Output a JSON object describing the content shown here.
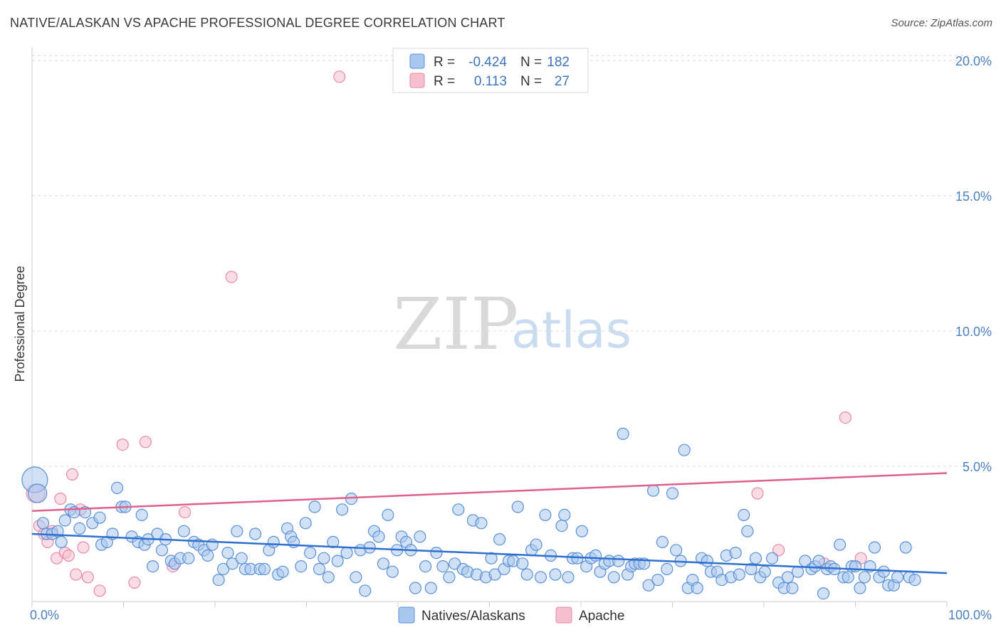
{
  "title": "NATIVE/ALASKAN VS APACHE PROFESSIONAL DEGREE CORRELATION CHART",
  "source": "Source: ZipAtlas.com",
  "watermark": {
    "zip": "ZIP",
    "atlas": "atlas"
  },
  "colors": {
    "blue_fill": "#a9c8ef",
    "blue_stroke": "#5b8fd6",
    "blue_line": "#2f6fd0",
    "pink_fill": "#f6bfd0",
    "pink_stroke": "#e88aa8",
    "pink_line": "#e0608a",
    "grid": "#d8d8d8",
    "axis_text": "#4a7fc1"
  },
  "legend": {
    "rows": [
      {
        "series": "Natives/Alaskans",
        "r_label": "R =",
        "r_value": "-0.424",
        "n_label": "N =",
        "n_value": "182"
      },
      {
        "series": "Apache",
        "r_label": "R =",
        "r_value": "0.113",
        "n_label": "N =",
        "n_value": "27"
      }
    ]
  },
  "chart_data": {
    "type": "scatter",
    "title": "NATIVE/ALASKAN VS APACHE PROFESSIONAL DEGREE CORRELATION CHART",
    "xlabel": "",
    "ylabel": "Professional Degree",
    "xlim": [
      0,
      100
    ],
    "ylim": [
      0,
      20.5
    ],
    "x_tick_labels": [
      {
        "value": 0,
        "label": "0.0%"
      },
      {
        "value": 100,
        "label": "100.0%"
      }
    ],
    "y_tick_labels": [
      {
        "value": 5,
        "label": "5.0%"
      },
      {
        "value": 10,
        "label": "10.0%"
      },
      {
        "value": 15,
        "label": "15.0%"
      },
      {
        "value": 20,
        "label": "20.0%"
      }
    ],
    "series": [
      {
        "name": "Natives/Alaskans",
        "trend": {
          "x": [
            0,
            100
          ],
          "y": [
            2.5,
            1.05
          ]
        },
        "points": [
          [
            0.3,
            4.5
          ],
          [
            0.6,
            4.0
          ],
          [
            1.2,
            2.9
          ],
          [
            1.6,
            2.5
          ],
          [
            2.2,
            2.5
          ],
          [
            2.8,
            2.6
          ],
          [
            3.2,
            2.2
          ],
          [
            3.6,
            3.0
          ],
          [
            4.2,
            3.4
          ],
          [
            4.6,
            3.3
          ],
          [
            5.2,
            2.7
          ],
          [
            5.8,
            3.3
          ],
          [
            6.6,
            2.9
          ],
          [
            7.4,
            3.1
          ],
          [
            7.6,
            2.1
          ],
          [
            8.2,
            2.2
          ],
          [
            8.8,
            2.5
          ],
          [
            9.3,
            4.2
          ],
          [
            9.8,
            3.5
          ],
          [
            10.2,
            3.5
          ],
          [
            10.9,
            2.4
          ],
          [
            11.6,
            2.2
          ],
          [
            12.0,
            3.2
          ],
          [
            12.3,
            2.1
          ],
          [
            12.7,
            2.3
          ],
          [
            13.2,
            1.3
          ],
          [
            13.7,
            2.5
          ],
          [
            14.2,
            1.9
          ],
          [
            14.6,
            2.3
          ],
          [
            15.2,
            1.5
          ],
          [
            15.6,
            1.4
          ],
          [
            16.2,
            1.6
          ],
          [
            16.6,
            2.6
          ],
          [
            17.1,
            1.6
          ],
          [
            17.7,
            2.2
          ],
          [
            18.2,
            2.1
          ],
          [
            18.8,
            1.9
          ],
          [
            19.2,
            1.7
          ],
          [
            19.7,
            2.1
          ],
          [
            20.4,
            0.8
          ],
          [
            20.9,
            1.2
          ],
          [
            21.4,
            1.8
          ],
          [
            21.9,
            1.4
          ],
          [
            22.4,
            2.6
          ],
          [
            22.9,
            1.6
          ],
          [
            23.3,
            1.2
          ],
          [
            23.9,
            1.2
          ],
          [
            24.4,
            2.5
          ],
          [
            24.9,
            1.2
          ],
          [
            25.4,
            1.2
          ],
          [
            25.9,
            1.9
          ],
          [
            26.4,
            2.2
          ],
          [
            26.9,
            1.0
          ],
          [
            27.4,
            1.1
          ],
          [
            27.9,
            2.7
          ],
          [
            28.3,
            2.4
          ],
          [
            28.6,
            2.2
          ],
          [
            29.4,
            1.3
          ],
          [
            29.9,
            2.9
          ],
          [
            30.4,
            1.8
          ],
          [
            30.9,
            3.5
          ],
          [
            31.4,
            1.2
          ],
          [
            31.9,
            1.6
          ],
          [
            32.4,
            0.9
          ],
          [
            32.9,
            2.2
          ],
          [
            33.4,
            1.5
          ],
          [
            33.9,
            3.4
          ],
          [
            34.4,
            1.8
          ],
          [
            34.9,
            3.8
          ],
          [
            35.4,
            0.9
          ],
          [
            35.9,
            1.9
          ],
          [
            36.4,
            0.4
          ],
          [
            36.9,
            2.0
          ],
          [
            37.4,
            2.6
          ],
          [
            37.9,
            2.4
          ],
          [
            38.4,
            1.4
          ],
          [
            38.9,
            3.2
          ],
          [
            39.4,
            1.1
          ],
          [
            39.9,
            1.9
          ],
          [
            40.4,
            2.4
          ],
          [
            40.9,
            2.2
          ],
          [
            41.4,
            1.9
          ],
          [
            41.9,
            0.5
          ],
          [
            42.4,
            2.4
          ],
          [
            43.0,
            1.3
          ],
          [
            43.6,
            0.5
          ],
          [
            44.2,
            1.8
          ],
          [
            44.9,
            1.3
          ],
          [
            45.6,
            0.9
          ],
          [
            46.2,
            1.4
          ],
          [
            46.6,
            3.4
          ],
          [
            47.1,
            1.2
          ],
          [
            47.6,
            1.1
          ],
          [
            48.2,
            3.0
          ],
          [
            48.6,
            1.0
          ],
          [
            49.1,
            2.9
          ],
          [
            49.6,
            0.9
          ],
          [
            50.2,
            1.6
          ],
          [
            50.6,
            1.0
          ],
          [
            51.1,
            2.3
          ],
          [
            51.6,
            1.2
          ],
          [
            52.1,
            1.5
          ],
          [
            52.6,
            1.5
          ],
          [
            53.1,
            3.5
          ],
          [
            53.6,
            1.4
          ],
          [
            54.1,
            1.0
          ],
          [
            54.6,
            1.9
          ],
          [
            55.1,
            2.1
          ],
          [
            55.6,
            0.9
          ],
          [
            56.1,
            3.2
          ],
          [
            56.7,
            1.7
          ],
          [
            57.2,
            1.0
          ],
          [
            57.9,
            2.8
          ],
          [
            58.2,
            3.2
          ],
          [
            58.6,
            0.9
          ],
          [
            59.1,
            1.6
          ],
          [
            59.6,
            1.6
          ],
          [
            60.1,
            2.6
          ],
          [
            60.6,
            1.3
          ],
          [
            61.1,
            1.6
          ],
          [
            61.6,
            1.7
          ],
          [
            62.1,
            1.1
          ],
          [
            62.6,
            1.4
          ],
          [
            63.1,
            1.5
          ],
          [
            63.6,
            0.9
          ],
          [
            64.1,
            1.5
          ],
          [
            64.6,
            6.2
          ],
          [
            65.1,
            1.0
          ],
          [
            65.5,
            1.3
          ],
          [
            65.9,
            1.4
          ],
          [
            66.4,
            1.4
          ],
          [
            66.9,
            1.4
          ],
          [
            67.4,
            0.6
          ],
          [
            67.9,
            4.1
          ],
          [
            68.4,
            0.8
          ],
          [
            68.9,
            2.2
          ],
          [
            69.4,
            1.2
          ],
          [
            70.0,
            4.0
          ],
          [
            70.4,
            1.9
          ],
          [
            70.9,
            1.5
          ],
          [
            71.3,
            5.6
          ],
          [
            71.7,
            0.5
          ],
          [
            72.2,
            0.8
          ],
          [
            72.7,
            0.5
          ],
          [
            73.2,
            1.6
          ],
          [
            73.8,
            1.5
          ],
          [
            74.2,
            1.1
          ],
          [
            74.9,
            1.1
          ],
          [
            75.4,
            0.8
          ],
          [
            75.9,
            1.7
          ],
          [
            76.4,
            0.9
          ],
          [
            76.9,
            1.8
          ],
          [
            77.3,
            1.0
          ],
          [
            77.8,
            3.2
          ],
          [
            78.2,
            2.6
          ],
          [
            78.6,
            1.2
          ],
          [
            79.1,
            1.6
          ],
          [
            79.6,
            0.9
          ],
          [
            80.1,
            1.1
          ],
          [
            80.9,
            1.6
          ],
          [
            81.6,
            0.7
          ],
          [
            82.2,
            0.5
          ],
          [
            82.6,
            0.9
          ],
          [
            83.1,
            0.5
          ],
          [
            83.7,
            1.1
          ],
          [
            84.5,
            1.5
          ],
          [
            85.2,
            1.2
          ],
          [
            85.6,
            1.3
          ],
          [
            86.0,
            1.5
          ],
          [
            86.5,
            0.3
          ],
          [
            86.9,
            1.2
          ],
          [
            87.3,
            1.3
          ],
          [
            87.7,
            1.2
          ],
          [
            88.3,
            2.1
          ],
          [
            88.7,
            0.9
          ],
          [
            89.2,
            0.9
          ],
          [
            89.6,
            1.3
          ],
          [
            90.0,
            1.3
          ],
          [
            90.5,
            0.5
          ],
          [
            91.0,
            0.9
          ],
          [
            91.6,
            1.3
          ],
          [
            92.1,
            2.0
          ],
          [
            92.6,
            0.9
          ],
          [
            93.1,
            1.1
          ],
          [
            93.6,
            0.6
          ],
          [
            94.2,
            0.6
          ],
          [
            94.6,
            0.9
          ],
          [
            95.5,
            2.0
          ],
          [
            95.9,
            0.9
          ],
          [
            96.5,
            0.8
          ]
        ]
      },
      {
        "name": "Apache",
        "trend": {
          "x": [
            0,
            100
          ],
          "y": [
            3.35,
            4.75
          ]
        },
        "points": [
          [
            0.4,
            4.0
          ],
          [
            0.8,
            2.8
          ],
          [
            1.3,
            2.5
          ],
          [
            1.7,
            2.2
          ],
          [
            2.2,
            2.6
          ],
          [
            2.7,
            1.6
          ],
          [
            3.1,
            3.8
          ],
          [
            3.6,
            1.8
          ],
          [
            4.0,
            1.7
          ],
          [
            4.4,
            4.7
          ],
          [
            4.8,
            1.0
          ],
          [
            5.3,
            3.4
          ],
          [
            5.6,
            2.0
          ],
          [
            6.1,
            0.9
          ],
          [
            7.4,
            0.4
          ],
          [
            9.9,
            5.8
          ],
          [
            11.2,
            0.7
          ],
          [
            12.4,
            5.9
          ],
          [
            15.4,
            1.3
          ],
          [
            16.7,
            3.3
          ],
          [
            21.8,
            12.0
          ],
          [
            33.6,
            19.4
          ],
          [
            79.3,
            4.0
          ],
          [
            81.6,
            1.9
          ],
          [
            86.6,
            1.4
          ],
          [
            88.9,
            6.8
          ],
          [
            90.6,
            1.6
          ]
        ]
      }
    ],
    "legend_position": "top-center"
  }
}
